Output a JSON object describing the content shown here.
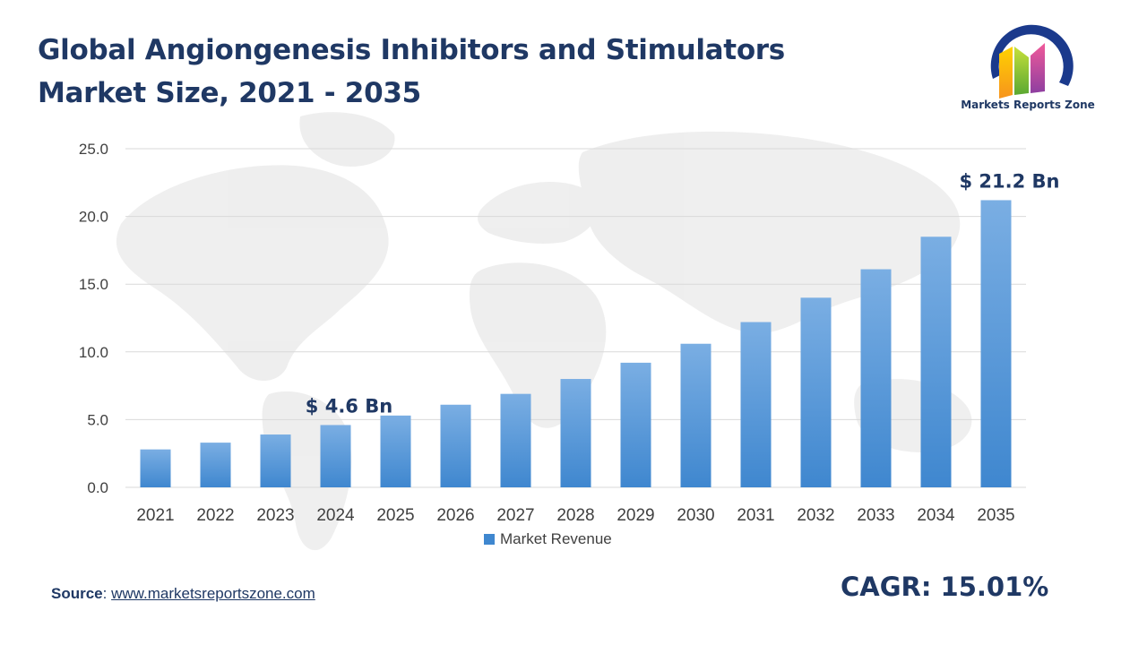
{
  "title": "Global Angiongenesis Inhibitors and Stimulators Market Size, 2021 - 2035",
  "logo": {
    "name": "Markets Reports Zone"
  },
  "source": {
    "label": "Source",
    "url": "www.marketsreportszone.com"
  },
  "cagr": "CAGR: 15.01%",
  "colors": {
    "title": "#1f3864",
    "bar_top": "#7aaee3",
    "bar_bottom": "#3f87cf",
    "grid": "#d9d9d9"
  },
  "chart_data": {
    "type": "bar",
    "categories": [
      "2021",
      "2022",
      "2023",
      "2024",
      "2025",
      "2026",
      "2027",
      "2028",
      "2029",
      "2030",
      "2031",
      "2032",
      "2033",
      "2034",
      "2035"
    ],
    "series": [
      {
        "name": "Market Revenue",
        "values": [
          2.8,
          3.3,
          3.9,
          4.6,
          5.3,
          6.1,
          6.9,
          8.0,
          9.2,
          10.6,
          12.2,
          14.0,
          16.1,
          18.5,
          21.2
        ]
      }
    ],
    "ylim": [
      0,
      25
    ],
    "yticks": [
      "0.0",
      "5.0",
      "10.0",
      "15.0",
      "20.0",
      "25.0"
    ],
    "annotations": [
      {
        "category": "2024",
        "text": "$ 4.6 Bn"
      },
      {
        "category": "2035",
        "text": "$ 21.2 Bn"
      }
    ],
    "grid": true,
    "legend": "bottom-center"
  }
}
